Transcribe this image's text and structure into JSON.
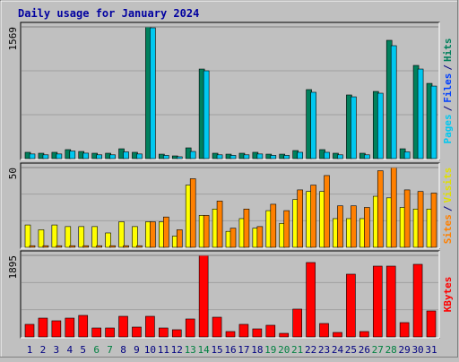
{
  "chart_data": [
    {
      "type": "bar",
      "title": "Daily usage for January 2024",
      "ylim": [
        0,
        1569
      ],
      "yticks": [
        1569
      ],
      "legend": [
        {
          "text": "Pages",
          "color": "#00c8f0"
        },
        {
          "text": "/",
          "color": "#000080"
        },
        {
          "text": "Files",
          "color": "#0040ff"
        },
        {
          "text": "/",
          "color": "#000080"
        },
        {
          "text": "Hits",
          "color": "#00805c"
        }
      ],
      "series": [
        {
          "color": "#00805c",
          "values": [
            75,
            64,
            75,
            107,
            85,
            64,
            64,
            117,
            75,
            1569,
            53,
            32,
            128,
            1067,
            64,
            53,
            64,
            75,
            53,
            53,
            96,
            822,
            107,
            64,
            758,
            64,
            800,
            1409,
            117,
            1110,
            896
          ]
        },
        {
          "color": "#00c8f0",
          "values": [
            55,
            45,
            55,
            90,
            65,
            45,
            45,
            80,
            55,
            1558,
            38,
            22,
            85,
            1046,
            45,
            38,
            45,
            55,
            38,
            38,
            75,
            790,
            75,
            45,
            736,
            45,
            779,
            1345,
            80,
            1067,
            864
          ]
        }
      ]
    },
    {
      "type": "bar",
      "ylim": [
        0,
        50
      ],
      "yticks": [
        50
      ],
      "legend": [
        {
          "text": "Sites",
          "color": "#ff8000"
        },
        {
          "text": "/",
          "color": "#000080"
        },
        {
          "text": "Visits",
          "color": "#e0e000"
        }
      ],
      "series": [
        {
          "color": "#ffff00",
          "values": [
            14,
            11,
            14,
            13,
            13,
            13,
            9,
            16,
            13,
            16,
            16,
            7,
            39,
            20,
            24,
            10,
            18,
            12,
            23,
            15,
            30,
            35,
            35,
            18,
            18,
            18,
            32,
            31,
            25,
            24,
            24
          ]
        },
        {
          "color": "#ff8000",
          "values": [
            1,
            1,
            1,
            1,
            1,
            1,
            1,
            1,
            1,
            16,
            19,
            11,
            43,
            20,
            29,
            12,
            24,
            13,
            27,
            23,
            36,
            39,
            45,
            26,
            26,
            25,
            48,
            50,
            36,
            35,
            34
          ]
        }
      ]
    },
    {
      "type": "bar",
      "ylim": [
        0,
        1895
      ],
      "yticks": [
        1895
      ],
      "legend": [
        {
          "text": "KBytes",
          "color": "#ff0000"
        }
      ],
      "categories": [
        "1",
        "2",
        "3",
        "4",
        "5",
        "6",
        "7",
        "8",
        "9",
        "10",
        "11",
        "12",
        "13",
        "14",
        "15",
        "16",
        "17",
        "18",
        "19",
        "20",
        "21",
        "22",
        "23",
        "24",
        "25",
        "26",
        "27",
        "28",
        "29",
        "30",
        "31"
      ],
      "category_colors": [
        "#000080",
        "#000080",
        "#000080",
        "#000080",
        "#000080",
        "#008040",
        "#008040",
        "#000080",
        "#000080",
        "#000080",
        "#000080",
        "#000080",
        "#008040",
        "#008040",
        "#000080",
        "#000080",
        "#000080",
        "#000080",
        "#008040",
        "#008040",
        "#008040",
        "#000080",
        "#000080",
        "#000080",
        "#000080",
        "#000080",
        "#008040",
        "#008040",
        "#000080",
        "#000080",
        "#000080"
      ],
      "series": [
        {
          "color": "#ff0000",
          "values": [
            292,
            437,
            375,
            437,
            500,
            208,
            208,
            479,
            229,
            479,
            208,
            167,
            417,
            1895,
            458,
            125,
            292,
            187,
            271,
            83,
            646,
            1729,
            312,
            104,
            1458,
            125,
            1645,
            1645,
            333,
            1687,
            604
          ]
        }
      ]
    }
  ]
}
